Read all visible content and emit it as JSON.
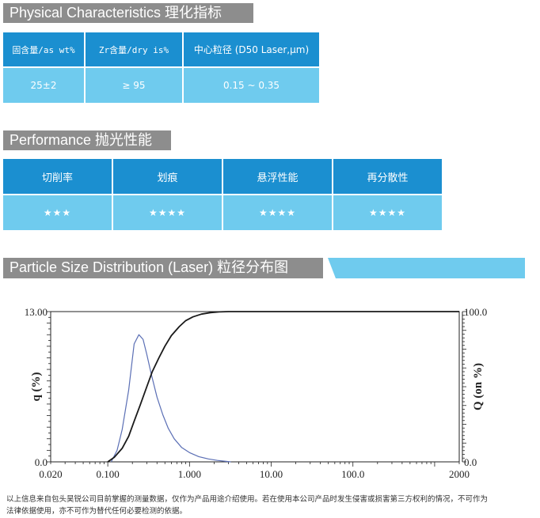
{
  "physical": {
    "title": "Physical Characteristics 理化指标",
    "headers": [
      "固含量/as wt%",
      "Zr含量/dry is%",
      "中心粒径 (D50 Laser,μm)"
    ],
    "values": [
      "25±2",
      "≥ 95",
      "0.15 ~ 0.35"
    ]
  },
  "performance": {
    "title": "Performance 抛光性能",
    "headers": [
      "切削率",
      "划痕",
      "悬浮性能",
      "再分散性"
    ],
    "stars": [
      "★★★",
      "★★★★",
      "★★★★",
      "★★★★"
    ]
  },
  "distribution": {
    "title": "Particle Size Distribution (Laser) 粒径分布图"
  },
  "chart_data": {
    "type": "line",
    "x_scale": "log",
    "xlim": [
      0.02,
      2000
    ],
    "x_ticks": [
      "0.020",
      "0.100",
      "1.000",
      "10.00",
      "100.0",
      "2000"
    ],
    "ylabel_left": "q (%)",
    "ylabel_right": "Q (on %)",
    "ylim_left": [
      0,
      13
    ],
    "ylim_right": [
      0,
      100
    ],
    "left_ticks": [
      "13.00",
      "0.0"
    ],
    "right_ticks": [
      "100.0",
      "0.0"
    ],
    "series": [
      {
        "axis": "left",
        "color": "#5b6fb5",
        "x": [
          0.11,
          0.13,
          0.15,
          0.18,
          0.21,
          0.24,
          0.27,
          0.3,
          0.34,
          0.4,
          0.47,
          0.55,
          0.65,
          0.8,
          1.0,
          1.3,
          1.7,
          2.2,
          2.8,
          3.2
        ],
        "y": [
          0,
          1.0,
          2.8,
          6.2,
          10.2,
          11.0,
          10.6,
          9.3,
          7.6,
          5.6,
          4.1,
          2.9,
          2.0,
          1.25,
          0.8,
          0.45,
          0.25,
          0.12,
          0.04,
          0
        ]
      },
      {
        "axis": "right",
        "color": "#1a1a1a",
        "x": [
          0.1,
          0.12,
          0.15,
          0.18,
          0.21,
          0.25,
          0.3,
          0.35,
          0.42,
          0.5,
          0.6,
          0.75,
          0.9,
          1.1,
          1.4,
          1.8,
          2.3,
          3.0,
          2000
        ],
        "y": [
          0,
          3,
          9,
          17,
          27,
          38,
          50,
          60,
          69,
          77,
          84,
          90,
          94,
          96.5,
          98.3,
          99.3,
          99.8,
          100,
          100
        ]
      }
    ]
  },
  "disclaimer": [
    "以上信息来自包头昊锐公司目前掌握的测量数据，仅作为产品用途介绍使用。若在使用本公司产品时发生侵害或损害第三方权利的情况，不可作为",
    "法律依据使用，亦不可作为替代任何必要检测的依据。"
  ]
}
